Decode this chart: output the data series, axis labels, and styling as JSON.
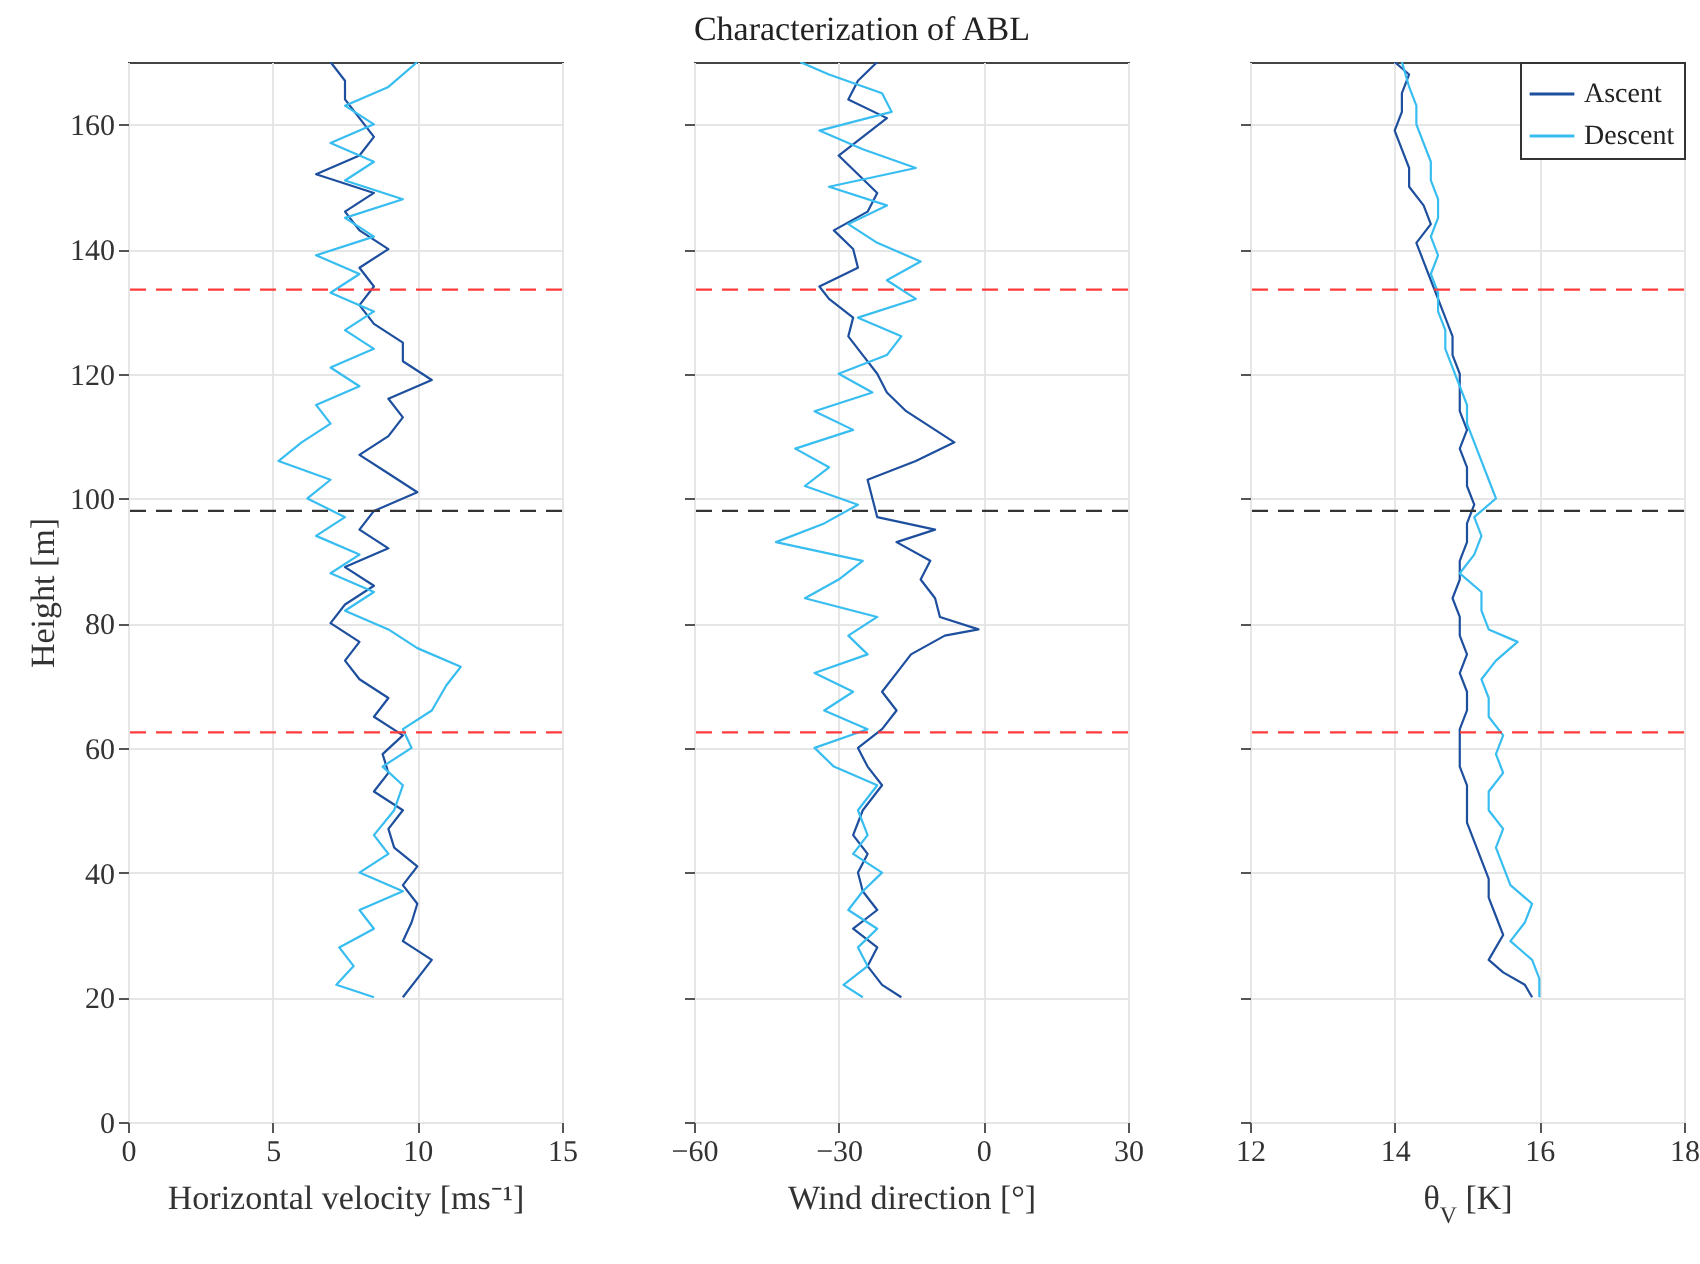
{
  "chart_data": [
    {
      "type": "line",
      "xlabel": "Horizontal velocity [ms⁻¹]",
      "ylabel": "Height [m]",
      "xlim": [
        0,
        15
      ],
      "xticks": [
        0,
        5,
        10,
        15
      ],
      "ylim": [
        0,
        170
      ],
      "yticks": [
        0,
        20,
        40,
        60,
        80,
        100,
        120,
        140,
        160
      ],
      "grid": true,
      "ref_lines": [
        {
          "axis": "y",
          "value": 133.5,
          "color": "#ff3b3b",
          "line_style": "dashed"
        },
        {
          "axis": "y",
          "value": 98,
          "color": "#333333",
          "line_style": "dashed"
        },
        {
          "axis": "y",
          "value": 62.5,
          "color": "#ff3b3b",
          "line_style": "dashed"
        }
      ],
      "series": [
        {
          "color": "#1d4f9e",
          "x": [
            9.5,
            10.0,
            10.5,
            9.5,
            9.8,
            10.0,
            9.5,
            10.0,
            9.2,
            9.0,
            9.5,
            8.5,
            9.0,
            8.8,
            9.5,
            8.5,
            9.0,
            8.0,
            7.5,
            8.0,
            7.0,
            7.5,
            8.5,
            7.5,
            9.0,
            8.0,
            8.5,
            10.0,
            9.0,
            8.0,
            9.0,
            9.5,
            9.0,
            10.5,
            9.5,
            9.5,
            8.5,
            8.0,
            8.5,
            8.0,
            9.0,
            8.0,
            7.5,
            8.5,
            6.5,
            8.0,
            8.5,
            8.0,
            7.5,
            7.5,
            7.0
          ],
          "values": [
            20,
            23,
            26,
            29,
            32,
            35,
            38,
            41,
            44,
            47,
            50,
            53,
            56,
            59,
            62,
            65,
            68,
            71,
            74,
            77,
            80,
            83,
            86,
            89,
            92,
            95,
            98,
            101,
            104,
            107,
            110,
            113,
            116,
            119,
            122,
            125,
            128,
            131,
            134,
            137,
            140,
            143,
            146,
            149,
            152,
            155,
            158,
            161,
            164,
            167,
            170
          ]
        },
        {
          "color": "#38bdf0",
          "x": [
            8.5,
            7.2,
            7.8,
            7.3,
            8.5,
            8.0,
            9.5,
            8.0,
            9.0,
            8.5,
            9.2,
            9.5,
            8.8,
            9.8,
            9.5,
            10.5,
            11.0,
            11.5,
            10.0,
            9.0,
            7.5,
            8.5,
            7.0,
            8.0,
            6.5,
            7.5,
            6.2,
            7.0,
            5.2,
            6.0,
            7.0,
            6.5,
            8.0,
            7.0,
            8.5,
            7.5,
            8.5,
            7.0,
            8.0,
            6.5,
            8.5,
            7.5,
            9.5,
            7.5,
            8.5,
            7.0,
            8.5,
            7.5,
            9.0,
            10.0
          ],
          "values": [
            20,
            22,
            25,
            28,
            31,
            34,
            37,
            40,
            43,
            46,
            50,
            54,
            57,
            60,
            63,
            66,
            70,
            73,
            76,
            79,
            82,
            85,
            88,
            91,
            94,
            97,
            100,
            103,
            106,
            109,
            112,
            115,
            118,
            121,
            124,
            127,
            130,
            133,
            136,
            139,
            142,
            145,
            148,
            151,
            154,
            157,
            160,
            163,
            166,
            170
          ]
        }
      ]
    },
    {
      "type": "line",
      "title": "Characterization of ABL",
      "xlabel": "Wind direction [°]",
      "xlim": [
        -60,
        30
      ],
      "xticks": [
        -60,
        -30,
        0,
        30
      ],
      "ylim": [
        0,
        170
      ],
      "yticks": [
        0,
        20,
        40,
        60,
        80,
        100,
        120,
        140,
        160
      ],
      "grid": true,
      "tick_labels": "x",
      "ref_lines": [
        {
          "axis": "y",
          "value": 133.5,
          "color": "#ff3b3b",
          "line_style": "dashed"
        },
        {
          "axis": "y",
          "value": 98,
          "color": "#333333",
          "line_style": "dashed"
        },
        {
          "axis": "y",
          "value": 62.5,
          "color": "#ff3b3b",
          "line_style": "dashed"
        }
      ],
      "series": [
        {
          "color": "#1d4f9e",
          "x": [
            -17,
            -21,
            -24,
            -22,
            -27,
            -22,
            -25,
            -26,
            -24,
            -27,
            -25,
            -21,
            -24,
            -26,
            -21,
            -18,
            -21,
            -18,
            -15,
            -8,
            -1,
            -9,
            -10,
            -13,
            -11,
            -18,
            -10,
            -22,
            -23,
            -24,
            -14,
            -6,
            -10,
            -16,
            -20,
            -22,
            -25,
            -28,
            -27,
            -32,
            -34,
            -26,
            -27,
            -31,
            -24,
            -22,
            -26,
            -30,
            -25,
            -20,
            -28,
            -26,
            -22
          ],
          "values": [
            20,
            22,
            25,
            28,
            31,
            34,
            37,
            40,
            43,
            46,
            50,
            54,
            57,
            60,
            63,
            66,
            69,
            72,
            75,
            78,
            79,
            81,
            84,
            87,
            90,
            93,
            95,
            97,
            100,
            103,
            106,
            109,
            111,
            114,
            117,
            120,
            123,
            126,
            129,
            132,
            134,
            137,
            140,
            143,
            146,
            149,
            152,
            155,
            158,
            161,
            164,
            167,
            170
          ]
        },
        {
          "color": "#38bdf0",
          "x": [
            -25,
            -29,
            -24,
            -26,
            -22,
            -28,
            -25,
            -21,
            -27,
            -24,
            -26,
            -22,
            -31,
            -35,
            -24,
            -33,
            -27,
            -35,
            -24,
            -28,
            -22,
            -37,
            -30,
            -25,
            -43,
            -33,
            -26,
            -37,
            -32,
            -39,
            -27,
            -35,
            -23,
            -30,
            -20,
            -17,
            -26,
            -14,
            -20,
            -13,
            -22,
            -28,
            -20,
            -32,
            -14,
            -25,
            -34,
            -19,
            -21,
            -32,
            -38
          ],
          "values": [
            20,
            22,
            25,
            28,
            31,
            34,
            37,
            40,
            43,
            46,
            50,
            54,
            57,
            60,
            63,
            66,
            69,
            72,
            75,
            78,
            81,
            84,
            87,
            90,
            93,
            96,
            99,
            102,
            105,
            108,
            111,
            114,
            117,
            120,
            123,
            126,
            129,
            132,
            135,
            138,
            141,
            144,
            147,
            150,
            153,
            156,
            159,
            162,
            165,
            168,
            170
          ]
        }
      ]
    },
    {
      "type": "line",
      "xlabel": "θ$_{V}$ [K]",
      "xlim": [
        12,
        18
      ],
      "xticks": [
        12,
        14,
        16,
        18
      ],
      "ylim": [
        0,
        170
      ],
      "yticks": [
        0,
        20,
        40,
        60,
        80,
        100,
        120,
        140,
        160
      ],
      "grid": true,
      "tick_labels": "x",
      "legend": "top right",
      "ref_lines": [
        {
          "axis": "y",
          "value": 133.5,
          "color": "#ff3b3b",
          "line_style": "dashed"
        },
        {
          "axis": "y",
          "value": 98,
          "color": "#333333",
          "line_style": "dashed"
        },
        {
          "axis": "y",
          "value": 62.5,
          "color": "#ff3b3b",
          "line_style": "dashed"
        }
      ],
      "series": [
        {
          "name": "Ascent",
          "color": "#1d4f9e",
          "x": [
            15.9,
            15.8,
            15.5,
            15.3,
            15.4,
            15.5,
            15.4,
            15.3,
            15.3,
            15.2,
            15.1,
            15.0,
            15.0,
            15.0,
            14.9,
            14.9,
            14.9,
            15.0,
            15.0,
            14.9,
            15.0,
            14.9,
            14.9,
            14.8,
            14.9,
            14.9,
            15.0,
            15.0,
            15.1,
            15.0,
            15.0,
            14.9,
            15.0,
            14.9,
            14.9,
            14.9,
            14.8,
            14.8,
            14.7,
            14.6,
            14.5,
            14.4,
            14.3,
            14.5,
            14.4,
            14.2,
            14.2,
            14.1,
            14.0,
            14.1,
            14.1,
            14.2,
            14.0
          ],
          "values": [
            20,
            22,
            24,
            26,
            28,
            30,
            33,
            36,
            39,
            42,
            45,
            48,
            51,
            54,
            57,
            60,
            63,
            66,
            69,
            72,
            75,
            78,
            81,
            84,
            87,
            90,
            93,
            96,
            99,
            102,
            105,
            108,
            111,
            114,
            117,
            120,
            123,
            126,
            129,
            132,
            135,
            138,
            141,
            144,
            147,
            150,
            153,
            156,
            159,
            162,
            165,
            168,
            170
          ]
        },
        {
          "name": "Descent",
          "color": "#38bdf0",
          "x": [
            16.0,
            16.0,
            15.9,
            15.6,
            15.8,
            15.9,
            15.6,
            15.5,
            15.4,
            15.5,
            15.3,
            15.3,
            15.5,
            15.4,
            15.5,
            15.3,
            15.3,
            15.2,
            15.4,
            15.7,
            15.3,
            15.2,
            15.2,
            14.9,
            15.1,
            15.2,
            15.1,
            15.4,
            15.3,
            15.2,
            15.1,
            15.0,
            15.0,
            14.9,
            14.8,
            14.7,
            14.7,
            14.6,
            14.6,
            14.5,
            14.6,
            14.5,
            14.6,
            14.6,
            14.5,
            14.5,
            14.4,
            14.3,
            14.3,
            14.2,
            14.1
          ],
          "values": [
            20,
            23,
            26,
            29,
            32,
            35,
            38,
            41,
            44,
            47,
            50,
            53,
            56,
            59,
            62,
            65,
            68,
            71,
            74,
            77,
            79,
            82,
            85,
            88,
            91,
            94,
            97,
            100,
            103,
            106,
            109,
            112,
            115,
            118,
            121,
            124,
            127,
            130,
            133,
            136,
            139,
            142,
            145,
            148,
            151,
            154,
            157,
            160,
            163,
            166,
            170
          ]
        }
      ]
    }
  ]
}
